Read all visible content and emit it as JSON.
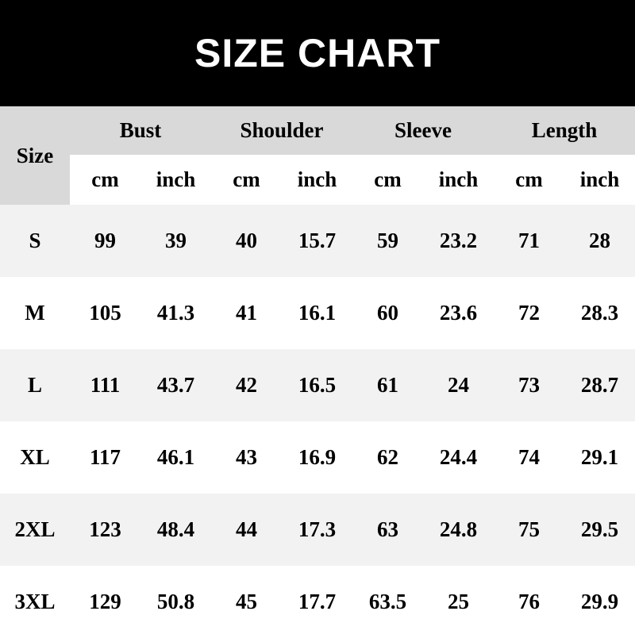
{
  "title": "SIZE CHART",
  "colors": {
    "title_bg": "#000000",
    "header_bg": "#d9d9d9",
    "stripe_bg": "#f2f2f2"
  },
  "headers": {
    "size": "Size",
    "groups": [
      "Bust",
      "Shoulder",
      "Sleeve",
      "Length"
    ],
    "units": [
      "cm",
      "inch",
      "cm",
      "inch",
      "cm",
      "inch",
      "cm",
      "inch"
    ]
  },
  "rows": [
    {
      "size": "S",
      "values": [
        "99",
        "39",
        "40",
        "15.7",
        "59",
        "23.2",
        "71",
        "28"
      ]
    },
    {
      "size": "M",
      "values": [
        "105",
        "41.3",
        "41",
        "16.1",
        "60",
        "23.6",
        "72",
        "28.3"
      ]
    },
    {
      "size": "L",
      "values": [
        "111",
        "43.7",
        "42",
        "16.5",
        "61",
        "24",
        "73",
        "28.7"
      ]
    },
    {
      "size": "XL",
      "values": [
        "117",
        "46.1",
        "43",
        "16.9",
        "62",
        "24.4",
        "74",
        "29.1"
      ]
    },
    {
      "size": "2XL",
      "values": [
        "123",
        "48.4",
        "44",
        "17.3",
        "63",
        "24.8",
        "75",
        "29.5"
      ]
    },
    {
      "size": "3XL",
      "values": [
        "129",
        "50.8",
        "45",
        "17.7",
        "63.5",
        "25",
        "76",
        "29.9"
      ]
    }
  ]
}
